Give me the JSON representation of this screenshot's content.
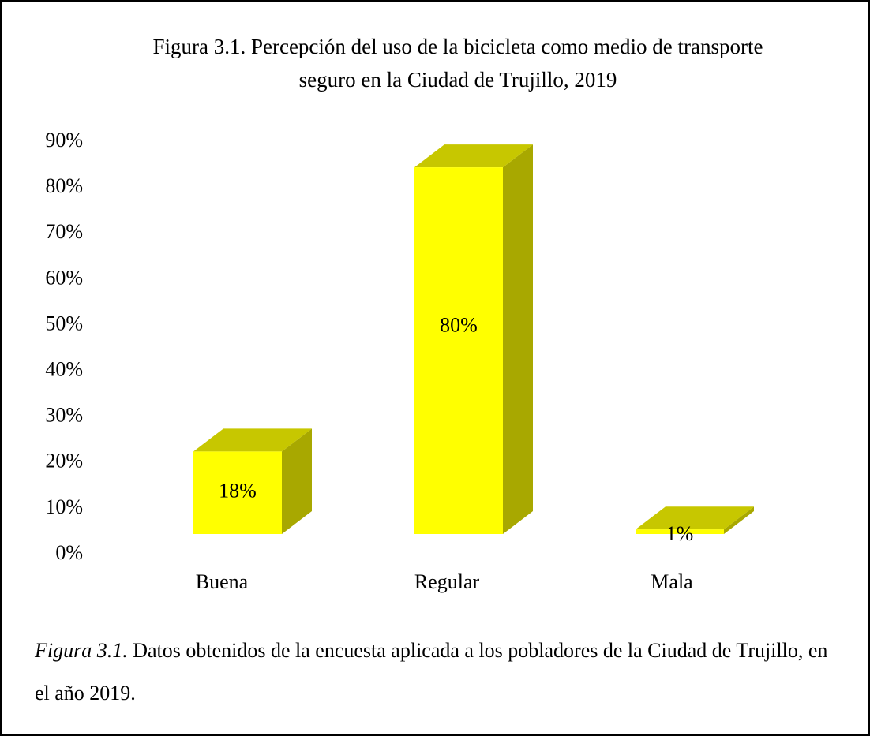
{
  "chart_data": {
    "type": "bar3d",
    "title": "Figura 3.1. Percepción del uso de la bicicleta como medio de transporte seguro en la Ciudad de Trujillo, 2019",
    "categories": [
      "Buena",
      "Regular",
      "Mala"
    ],
    "values": [
      18,
      80,
      1
    ],
    "value_labels": [
      "18%",
      "80%",
      "1%"
    ],
    "color": "#ffff00",
    "ylim": [
      0,
      90
    ],
    "yticks": [
      {
        "value": 0,
        "label": "0%"
      },
      {
        "value": 10,
        "label": "10%"
      },
      {
        "value": 20,
        "label": "20%"
      },
      {
        "value": 30,
        "label": "30%"
      },
      {
        "value": 40,
        "label": "40%"
      },
      {
        "value": 50,
        "label": "50%"
      },
      {
        "value": 60,
        "label": "60%"
      },
      {
        "value": 70,
        "label": "70%"
      },
      {
        "value": 80,
        "label": "80%"
      },
      {
        "value": 90,
        "label": "90%"
      }
    ],
    "grid": false,
    "caption_label": "Figura 3.1.",
    "caption": "Datos obtenidos de la encuesta aplicada a los pobladores de la Ciudad de Trujillo, en el año 2019."
  }
}
